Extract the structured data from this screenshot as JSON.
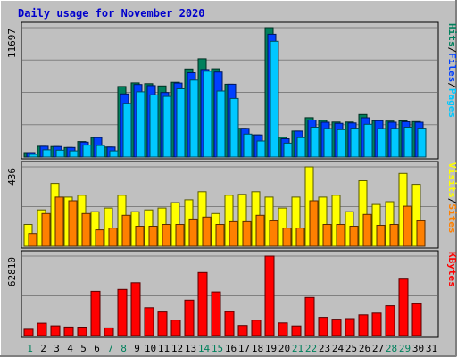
{
  "chart_data": {
    "type": "bar",
    "title": "Daily usage for November 2020",
    "categories": [
      "1",
      "2",
      "3",
      "4",
      "5",
      "6",
      "7",
      "8",
      "9",
      "10",
      "11",
      "12",
      "13",
      "14",
      "15",
      "16",
      "17",
      "18",
      "19",
      "20",
      "21",
      "22",
      "23",
      "24",
      "25",
      "26",
      "27",
      "28",
      "29",
      "30",
      "31"
    ],
    "weekend_days": [
      "1",
      "7",
      "8",
      "14",
      "15",
      "21",
      "22",
      "28",
      "29"
    ],
    "panels": [
      {
        "id": "requests",
        "axis_max_label": "11697",
        "ylim": [
          0,
          11697
        ],
        "legend": [
          {
            "label": "Hits",
            "color": "#00805c"
          },
          {
            "label": "Files",
            "color": "#0040ff"
          },
          {
            "label": "Pages",
            "color": "#00c8ff"
          }
        ],
        "series": [
          {
            "name": "Hits",
            "values": [
              400,
              980,
              950,
              860,
              1400,
              1770,
              900,
              6380,
              6700,
              6630,
              6430,
              6760,
              7960,
              8880,
              7980,
              6580,
              2600,
              2000,
              11697,
              1800,
              2350,
              3560,
              3320,
              3160,
              3160,
              3850,
              3280,
              3250,
              3270,
              3200,
              0
            ]
          },
          {
            "name": "Files",
            "values": [
              400,
              980,
              950,
              860,
              1350,
              1770,
              900,
              5700,
              6560,
              6460,
              5830,
              6690,
              7620,
              7910,
              7690,
              6580,
              2600,
              2000,
              11100,
              1650,
              2350,
              3350,
              3150,
              3050,
              3080,
              3550,
              3280,
              3150,
              3190,
              3150,
              0
            ]
          },
          {
            "name": "Pages",
            "values": [
              250,
              650,
              620,
              560,
              1080,
              1050,
              560,
              4860,
              5900,
              5620,
              5480,
              6170,
              6950,
              7760,
              5970,
              5290,
              2070,
              1450,
              10460,
              1260,
              1760,
              2700,
              2580,
              2480,
              2610,
              2960,
              2580,
              2600,
              2700,
              2610,
              0
            ]
          }
        ]
      },
      {
        "id": "visitors",
        "axis_max_label": "436",
        "ylim": [
          0,
          436
        ],
        "legend": [
          {
            "label": "Visits",
            "color": "#ffff00"
          },
          {
            "label": "Sites",
            "color": "#ff8000"
          }
        ],
        "series": [
          {
            "name": "Visits",
            "values": [
              120,
              200,
              345,
              270,
              280,
              190,
              210,
              280,
              190,
              200,
              210,
              240,
              255,
              300,
              180,
              280,
              285,
              300,
              270,
              210,
              270,
              436,
              270,
              280,
              190,
              360,
              230,
              245,
              400,
              340,
              0
            ]
          },
          {
            "name": "Sites",
            "values": [
              70,
              180,
              270,
              250,
              180,
              90,
              100,
              170,
              110,
              110,
              120,
              120,
              150,
              160,
              120,
              135,
              135,
              170,
              140,
              100,
              100,
              250,
              120,
              120,
              110,
              175,
              115,
              120,
              220,
              140,
              0
            ]
          }
        ]
      },
      {
        "id": "volume",
        "axis_max_label": "62810",
        "ylim": [
          0,
          62810
        ],
        "legend": [
          {
            "label": "KBytes",
            "color": "#ff0000"
          }
        ],
        "series": [
          {
            "name": "KBytes",
            "values": [
              5000,
              9800,
              7700,
              6800,
              6700,
              35000,
              6100,
              36500,
              41800,
              22000,
              18600,
              12300,
              28000,
              49900,
              34500,
              18900,
              8000,
              12200,
              62810,
              10000,
              7600,
              30100,
              14400,
              13000,
              13400,
              16400,
              17800,
              23600,
              44700,
              25200,
              0
            ]
          }
        ]
      }
    ]
  }
}
